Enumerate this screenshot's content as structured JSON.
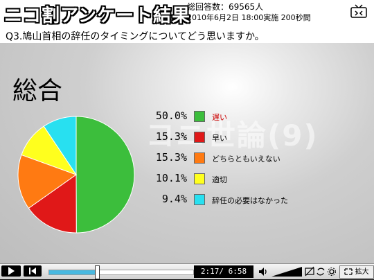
{
  "header": {
    "title": "ニコ割アンケート結果",
    "total_votes": "総回答数：69565人",
    "date": "2010年6月2日 18:00実施 200秒間"
  },
  "question": "Q3.鳩山首相の辞任のタイミングについてどう思いますか。",
  "section_title": "総合",
  "watermark": "コニ世論(9)",
  "chart_data": {
    "type": "pie",
    "title": "総合",
    "categories": [
      "遅い",
      "早い",
      "どちらともいえない",
      "適切",
      "辞任の必要はなかった"
    ],
    "values": [
      50.0,
      15.3,
      15.3,
      10.1,
      9.4
    ],
    "value_labels": [
      "50.0%",
      "15.3%",
      "15.3%",
      "10.1%",
      "9.4%"
    ],
    "colors": [
      "#3cbe3c",
      "#e01818",
      "#ff7a12",
      "#ffff1e",
      "#28e0f0"
    ],
    "label_colors": [
      "#cc0000",
      "#000000",
      "#000000",
      "#000000",
      "#000000"
    ]
  },
  "player": {
    "time": "2:17/ 6:58",
    "zoom_label": "拡大",
    "progress": 0.33
  }
}
